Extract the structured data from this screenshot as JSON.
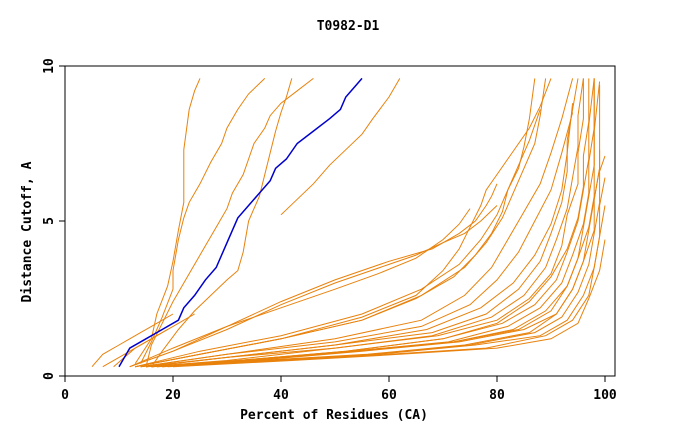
{
  "chart_data": {
    "type": "line",
    "title": "T0982-D1",
    "xlabel": "Percent of Residues (CA)",
    "ylabel": "Distance Cutoff, A",
    "xlim": [
      0,
      100
    ],
    "ylim": [
      0,
      10
    ],
    "x_ticks": [
      0,
      20,
      40,
      60,
      80,
      100
    ],
    "y_ticks": [
      0,
      5,
      10
    ],
    "grid": false,
    "legend": "none",
    "colors": {
      "default": "#e8820c",
      "highlight": "#0000cc",
      "axis": "#000000"
    },
    "series": [
      {
        "highlight": true,
        "color": "#0000cc",
        "x": [
          10,
          11,
          12,
          15,
          18,
          21,
          22,
          24,
          26,
          28,
          30,
          32,
          34,
          36,
          38,
          39,
          41,
          43,
          46,
          49,
          51,
          52,
          54,
          55
        ],
        "y": [
          0.3,
          0.6,
          0.9,
          1.2,
          1.5,
          1.8,
          2.2,
          2.6,
          3.1,
          3.5,
          4.3,
          5.1,
          5.5,
          5.9,
          6.3,
          6.7,
          7.0,
          7.5,
          7.9,
          8.3,
          8.6,
          9.0,
          9.4,
          9.6
        ]
      },
      {
        "highlight": false,
        "x": [
          13,
          16,
          17,
          19,
          20,
          21,
          22,
          22,
          22,
          23,
          24,
          25
        ],
        "y": [
          0.4,
          1.2,
          2.0,
          2.9,
          3.7,
          4.7,
          5.6,
          6.7,
          7.3,
          8.6,
          9.2,
          9.6
        ]
      },
      {
        "highlight": false,
        "x": [
          14,
          16,
          18,
          20,
          20,
          21,
          22,
          23,
          25,
          27,
          29,
          30,
          32,
          34,
          37
        ],
        "y": [
          0.4,
          1.1,
          1.9,
          2.8,
          3.4,
          4.4,
          5.1,
          5.6,
          6.2,
          6.9,
          7.5,
          8.0,
          8.6,
          9.1,
          9.6
        ]
      },
      {
        "highlight": false,
        "x": [
          15,
          16,
          18,
          20,
          22,
          24,
          26,
          28,
          30,
          31,
          33,
          34,
          35,
          37,
          38,
          40,
          43,
          46
        ],
        "y": [
          0.3,
          1.0,
          1.7,
          2.4,
          3.0,
          3.6,
          4.2,
          4.8,
          5.4,
          5.9,
          6.5,
          7.0,
          7.5,
          8.0,
          8.4,
          8.8,
          9.2,
          9.6
        ]
      },
      {
        "highlight": false,
        "x": [
          16,
          18,
          21,
          24,
          27,
          30,
          32,
          33,
          34,
          36,
          37,
          38,
          39,
          40,
          41,
          42
        ],
        "y": [
          0.3,
          0.8,
          1.5,
          2.1,
          2.6,
          3.1,
          3.4,
          4.0,
          5.0,
          5.8,
          6.5,
          7.2,
          7.9,
          8.5,
          9.0,
          9.6
        ]
      },
      {
        "highlight": false,
        "x": [
          5,
          7,
          10,
          12,
          14,
          16,
          18,
          20
        ],
        "y": [
          0.3,
          0.7,
          1.0,
          1.2,
          1.4,
          1.6,
          1.8,
          2.0
        ]
      },
      {
        "highlight": false,
        "x": [
          7,
          10,
          13,
          16,
          18,
          20,
          22,
          24
        ],
        "y": [
          0.3,
          0.6,
          0.9,
          1.2,
          1.4,
          1.6,
          1.8,
          2.0
        ]
      },
      {
        "highlight": false,
        "x": [
          9,
          11,
          13,
          15,
          17,
          19
        ],
        "y": [
          0.3,
          0.6,
          0.9,
          1.1,
          1.3,
          1.5
        ]
      },
      {
        "highlight": false,
        "x": [
          40,
          43,
          46,
          49,
          52,
          55,
          57,
          60,
          62
        ],
        "y": [
          5.2,
          5.7,
          6.2,
          6.8,
          7.3,
          7.8,
          8.3,
          9.0,
          9.6
        ]
      },
      {
        "highlight": false,
        "x": [
          12,
          20,
          30,
          40,
          50,
          60,
          65,
          70,
          74,
          77,
          80
        ],
        "y": [
          0.3,
          0.8,
          1.5,
          2.3,
          3.0,
          3.6,
          3.9,
          4.3,
          4.6,
          5.0,
          5.5
        ]
      },
      {
        "highlight": false,
        "x": [
          12,
          20,
          30,
          40,
          50,
          60,
          68,
          73,
          76,
          78,
          79,
          80
        ],
        "y": [
          0.3,
          0.8,
          1.6,
          2.4,
          3.1,
          3.7,
          4.1,
          4.6,
          5.0,
          5.5,
          5.8,
          6.2
        ]
      },
      {
        "highlight": false,
        "x": [
          12,
          20,
          30,
          40,
          50,
          58,
          65,
          70,
          73,
          75
        ],
        "y": [
          0.3,
          0.9,
          1.6,
          2.2,
          2.8,
          3.3,
          3.8,
          4.4,
          4.9,
          5.4
        ]
      },
      {
        "highlight": false,
        "x": [
          13,
          25,
          40,
          55,
          65,
          70,
          73,
          75,
          77,
          78,
          80,
          82,
          84,
          86,
          88,
          90
        ],
        "y": [
          0.3,
          0.7,
          1.2,
          1.9,
          2.6,
          3.4,
          4.1,
          4.8,
          5.5,
          6.0,
          6.5,
          7.0,
          7.5,
          8.0,
          8.7,
          9.6
        ]
      },
      {
        "highlight": false,
        "x": [
          13,
          25,
          40,
          55,
          65,
          72,
          76,
          79,
          81,
          82,
          84,
          85,
          86,
          87
        ],
        "y": [
          0.3,
          0.7,
          1.2,
          1.8,
          2.5,
          3.2,
          3.9,
          4.6,
          5.3,
          6.0,
          6.7,
          7.4,
          8.3,
          9.6
        ]
      },
      {
        "highlight": false,
        "x": [
          13,
          25,
          40,
          55,
          66,
          73,
          77,
          80,
          82,
          84,
          86,
          88
        ],
        "y": [
          0.3,
          0.8,
          1.3,
          2.0,
          2.8,
          3.6,
          4.4,
          5.2,
          6.0,
          6.8,
          7.6,
          8.6
        ]
      },
      {
        "highlight": false,
        "x": [
          13,
          25,
          40,
          55,
          66,
          74,
          78,
          81,
          83,
          85,
          87,
          88,
          89
        ],
        "y": [
          0.3,
          0.7,
          1.2,
          1.8,
          2.6,
          3.5,
          4.3,
          5.1,
          5.9,
          6.7,
          7.5,
          8.4,
          9.6
        ]
      },
      {
        "highlight": false,
        "x": [
          14,
          30,
          50,
          66,
          74,
          79,
          82,
          85,
          88,
          90,
          92,
          94
        ],
        "y": [
          0.3,
          0.7,
          1.2,
          1.8,
          2.6,
          3.5,
          4.4,
          5.3,
          6.2,
          7.2,
          8.3,
          9.6
        ]
      },
      {
        "highlight": false,
        "x": [
          14,
          30,
          50,
          66,
          75,
          80,
          84,
          87,
          90,
          92,
          94
        ],
        "y": [
          0.3,
          0.7,
          1.1,
          1.6,
          2.3,
          3.1,
          4.0,
          5.0,
          6.0,
          7.2,
          8.5
        ]
      },
      {
        "highlight": false,
        "x": [
          14,
          30,
          50,
          67,
          77,
          83,
          87,
          90,
          92,
          93,
          94
        ],
        "y": [
          0.3,
          0.6,
          1.0,
          1.5,
          2.2,
          3.0,
          3.9,
          4.9,
          6.0,
          7.2,
          8.8
        ]
      },
      {
        "highlight": false,
        "x": [
          15,
          30,
          50,
          68,
          78,
          84,
          88,
          90,
          92,
          93,
          93,
          94,
          95
        ],
        "y": [
          0.3,
          0.6,
          1.0,
          1.4,
          2.0,
          2.8,
          3.7,
          4.6,
          5.6,
          6.6,
          7.6,
          8.6,
          9.6
        ]
      },
      {
        "highlight": false,
        "x": [
          15,
          30,
          50,
          68,
          79,
          85,
          89,
          91,
          93,
          94,
          95,
          95,
          96
        ],
        "y": [
          0.3,
          0.6,
          0.9,
          1.3,
          1.9,
          2.6,
          3.5,
          4.4,
          5.4,
          6.4,
          7.4,
          8.4,
          9.6
        ]
      },
      {
        "highlight": false,
        "x": [
          15,
          30,
          50,
          69,
          80,
          86,
          90,
          92,
          93,
          95,
          95,
          96,
          96
        ],
        "y": [
          0.3,
          0.5,
          0.9,
          1.3,
          1.8,
          2.5,
          3.3,
          4.2,
          5.2,
          6.2,
          7.2,
          8.3,
          9.6
        ]
      },
      {
        "highlight": false,
        "x": [
          15,
          32,
          52,
          70,
          80,
          86,
          90,
          93,
          95,
          96,
          96,
          97,
          97
        ],
        "y": [
          0.3,
          0.5,
          0.8,
          1.2,
          1.7,
          2.4,
          3.2,
          4.1,
          5.1,
          6.1,
          7.1,
          8.2,
          9.6
        ]
      },
      {
        "highlight": false,
        "x": [
          16,
          32,
          52,
          70,
          81,
          87,
          91,
          93,
          95,
          96,
          97,
          97,
          98
        ],
        "y": [
          0.3,
          0.5,
          0.8,
          1.2,
          1.7,
          2.3,
          3.1,
          4.0,
          5.0,
          6.0,
          7.0,
          8.1,
          9.6
        ]
      },
      {
        "highlight": false,
        "x": [
          16,
          32,
          53,
          71,
          82,
          88,
          92,
          94,
          96,
          97,
          97,
          98,
          98
        ],
        "y": [
          0.3,
          0.5,
          0.8,
          1.1,
          1.6,
          2.2,
          3.0,
          3.9,
          4.9,
          5.9,
          6.9,
          8.0,
          9.6
        ]
      },
      {
        "highlight": false,
        "x": [
          16,
          33,
          53,
          72,
          83,
          89,
          93,
          95,
          96,
          97,
          98,
          98,
          98
        ],
        "y": [
          0.3,
          0.5,
          0.8,
          1.1,
          1.5,
          2.1,
          2.9,
          3.8,
          4.8,
          5.8,
          6.8,
          7.9,
          9.6
        ]
      },
      {
        "highlight": false,
        "x": [
          16,
          34,
          54,
          72,
          84,
          90,
          93,
          95,
          97,
          98,
          98,
          98,
          99
        ],
        "y": [
          0.3,
          0.5,
          0.8,
          1.1,
          1.5,
          2.1,
          2.9,
          3.8,
          4.8,
          5.8,
          6.8,
          7.9,
          9.5
        ]
      },
      {
        "highlight": false,
        "x": [
          17,
          35,
          55,
          73,
          85,
          91,
          94,
          96,
          97,
          98,
          99,
          99,
          99
        ],
        "y": [
          0.3,
          0.5,
          0.8,
          1.1,
          1.5,
          2.0,
          2.8,
          3.7,
          4.7,
          5.7,
          6.7,
          7.8,
          9.4
        ]
      },
      {
        "highlight": false,
        "x": [
          17,
          36,
          56,
          74,
          86,
          91,
          94,
          96,
          98,
          98,
          99,
          99
        ],
        "y": [
          0.3,
          0.5,
          0.7,
          1.0,
          1.4,
          2.0,
          2.8,
          3.7,
          4.7,
          5.7,
          6.7,
          7.3
        ]
      },
      {
        "highlight": false,
        "x": [
          18,
          37,
          57,
          75,
          87,
          92,
          95,
          97,
          98,
          99,
          99,
          100
        ],
        "y": [
          0.3,
          0.5,
          0.7,
          1.0,
          1.4,
          1.9,
          2.7,
          3.6,
          4.6,
          5.6,
          6.6,
          7.1
        ]
      },
      {
        "highlight": false,
        "x": [
          18,
          38,
          58,
          76,
          88,
          93,
          96,
          98,
          99,
          99,
          100
        ],
        "y": [
          0.3,
          0.5,
          0.7,
          1.0,
          1.3,
          1.8,
          2.6,
          3.5,
          4.5,
          5.5,
          6.4
        ]
      },
      {
        "highlight": false,
        "x": [
          19,
          40,
          60,
          78,
          89,
          94,
          97,
          98,
          99,
          100
        ],
        "y": [
          0.3,
          0.5,
          0.7,
          0.9,
          1.3,
          1.8,
          2.6,
          3.5,
          4.5,
          5.5
        ]
      },
      {
        "highlight": false,
        "x": [
          20,
          42,
          62,
          80,
          90,
          95,
          97,
          99,
          100
        ],
        "y": [
          0.3,
          0.5,
          0.7,
          0.9,
          1.2,
          1.7,
          2.5,
          3.4,
          4.4
        ]
      }
    ]
  }
}
